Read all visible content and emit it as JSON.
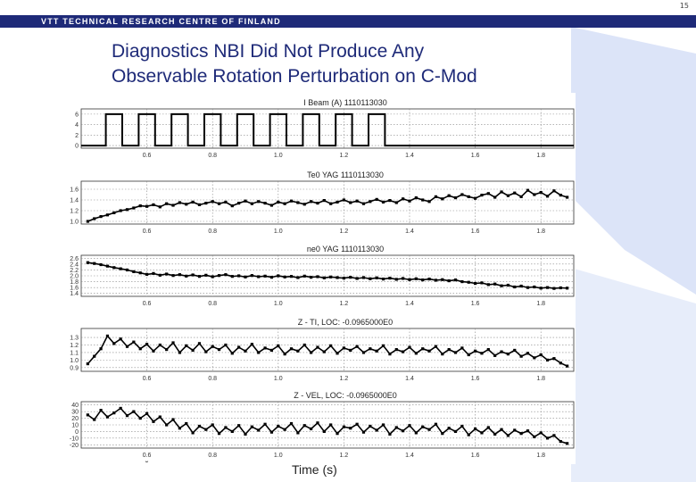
{
  "page_number": "15",
  "header": {
    "org": "VTT TECHNICAL RESEARCH CENTRE OF FINLAND"
  },
  "title": {
    "line1": "Diagnostics NBI Did Not Produce Any",
    "line2": "Observable Rotation Perturbation on C-Mod"
  },
  "x_axis_title": "Time (s)",
  "colors": {
    "header_bar": "#1e2a78",
    "title": "#1e2a78",
    "background_shape": "#3b6bd6",
    "trace": "#000000"
  },
  "chart_data": [
    {
      "type": "line",
      "title": "I Beam (A) 1110113030",
      "x_ticks": [
        0.6,
        0.8,
        1.0,
        1.2,
        1.4,
        1.6,
        1.8
      ],
      "x_tick_labels": [
        "0.6",
        "0.8",
        "1.0",
        "1.2",
        "1.4",
        "1.6",
        "1.8"
      ],
      "y_ticks": [
        0,
        2,
        4,
        6
      ],
      "y_tick_labels": [
        "0",
        "2",
        "4",
        "6"
      ],
      "xlim": [
        0.4,
        1.9
      ],
      "ylim": [
        -0.5,
        7
      ],
      "grid": true,
      "waveform": {
        "kind": "pulses",
        "low": 0,
        "high": 6,
        "period": 0.1,
        "on_duration": 0.05,
        "first_on": 0.475,
        "count": 9
      }
    },
    {
      "type": "line",
      "title": "Te0 YAG 1110113030",
      "x_ticks": [
        0.6,
        0.8,
        1.0,
        1.2,
        1.4,
        1.6,
        1.8
      ],
      "x_tick_labels": [
        "0.6",
        "0.8",
        "1.0",
        "1.2",
        "1.4",
        "1.6",
        "1.8"
      ],
      "y_ticks": [
        1.0,
        1.2,
        1.4,
        1.6
      ],
      "y_tick_labels": [
        "1.0",
        "1.2",
        "1.4",
        "1.6"
      ],
      "xlim": [
        0.4,
        1.9
      ],
      "ylim": [
        0.95,
        1.75
      ],
      "grid": true,
      "x": [
        0.42,
        0.44,
        0.46,
        0.48,
        0.5,
        0.52,
        0.54,
        0.56,
        0.58,
        0.6,
        0.62,
        0.64,
        0.66,
        0.68,
        0.7,
        0.72,
        0.74,
        0.76,
        0.78,
        0.8,
        0.82,
        0.84,
        0.86,
        0.88,
        0.9,
        0.92,
        0.94,
        0.96,
        0.98,
        1.0,
        1.02,
        1.04,
        1.06,
        1.08,
        1.1,
        1.12,
        1.14,
        1.16,
        1.18,
        1.2,
        1.22,
        1.24,
        1.26,
        1.28,
        1.3,
        1.32,
        1.34,
        1.36,
        1.38,
        1.4,
        1.42,
        1.44,
        1.46,
        1.48,
        1.5,
        1.52,
        1.54,
        1.56,
        1.58,
        1.6,
        1.62,
        1.64,
        1.66,
        1.68,
        1.7,
        1.72,
        1.74,
        1.76,
        1.78,
        1.8,
        1.82,
        1.84,
        1.86,
        1.88
      ],
      "y": [
        1.0,
        1.05,
        1.09,
        1.12,
        1.16,
        1.2,
        1.22,
        1.25,
        1.29,
        1.28,
        1.31,
        1.27,
        1.33,
        1.3,
        1.35,
        1.32,
        1.36,
        1.31,
        1.34,
        1.37,
        1.33,
        1.36,
        1.29,
        1.34,
        1.38,
        1.33,
        1.37,
        1.34,
        1.3,
        1.36,
        1.33,
        1.38,
        1.35,
        1.32,
        1.37,
        1.34,
        1.39,
        1.33,
        1.36,
        1.4,
        1.35,
        1.38,
        1.33,
        1.37,
        1.41,
        1.36,
        1.39,
        1.35,
        1.42,
        1.38,
        1.44,
        1.4,
        1.37,
        1.46,
        1.42,
        1.48,
        1.44,
        1.5,
        1.46,
        1.43,
        1.49,
        1.52,
        1.45,
        1.55,
        1.48,
        1.53,
        1.46,
        1.58,
        1.5,
        1.54,
        1.47,
        1.57,
        1.49,
        1.45
      ]
    },
    {
      "type": "line",
      "title": "ne0 YAG 1110113030",
      "x_ticks": [
        0.6,
        0.8,
        1.0,
        1.2,
        1.4,
        1.6,
        1.8
      ],
      "x_tick_labels": [
        "0.6",
        "0.8",
        "1.0",
        "1.2",
        "1.4",
        "1.6",
        "1.8"
      ],
      "y_ticks": [
        1.4,
        1.6,
        1.8,
        2.0,
        2.2,
        2.4,
        2.6
      ],
      "y_tick_labels": [
        "1.4",
        "1.6",
        "1.8",
        "2.0",
        "2.2",
        "2.4",
        "2.6"
      ],
      "xlim": [
        0.4,
        1.9
      ],
      "ylim": [
        1.3,
        2.7
      ],
      "grid": true,
      "x": [
        0.42,
        0.44,
        0.46,
        0.48,
        0.5,
        0.52,
        0.54,
        0.56,
        0.58,
        0.6,
        0.62,
        0.64,
        0.66,
        0.68,
        0.7,
        0.72,
        0.74,
        0.76,
        0.78,
        0.8,
        0.82,
        0.84,
        0.86,
        0.88,
        0.9,
        0.92,
        0.94,
        0.96,
        0.98,
        1.0,
        1.02,
        1.04,
        1.06,
        1.08,
        1.1,
        1.12,
        1.14,
        1.16,
        1.18,
        1.2,
        1.22,
        1.24,
        1.26,
        1.28,
        1.3,
        1.32,
        1.34,
        1.36,
        1.38,
        1.4,
        1.42,
        1.44,
        1.46,
        1.48,
        1.5,
        1.52,
        1.54,
        1.56,
        1.58,
        1.6,
        1.62,
        1.64,
        1.66,
        1.68,
        1.7,
        1.72,
        1.74,
        1.76,
        1.78,
        1.8,
        1.82,
        1.84,
        1.86,
        1.88
      ],
      "y": [
        2.45,
        2.42,
        2.38,
        2.33,
        2.28,
        2.24,
        2.2,
        2.14,
        2.1,
        2.05,
        2.08,
        2.02,
        2.06,
        2.01,
        2.04,
        1.99,
        2.03,
        1.98,
        2.02,
        1.97,
        2.01,
        2.04,
        1.98,
        2.0,
        1.96,
        2.01,
        1.97,
        1.99,
        1.95,
        2.0,
        1.96,
        1.98,
        1.94,
        1.99,
        1.95,
        1.97,
        1.93,
        1.96,
        1.94,
        1.92,
        1.95,
        1.91,
        1.94,
        1.9,
        1.93,
        1.89,
        1.92,
        1.88,
        1.91,
        1.87,
        1.9,
        1.86,
        1.89,
        1.85,
        1.87,
        1.83,
        1.86,
        1.8,
        1.78,
        1.74,
        1.76,
        1.7,
        1.72,
        1.66,
        1.68,
        1.62,
        1.65,
        1.6,
        1.62,
        1.58,
        1.6,
        1.57,
        1.59,
        1.58
      ]
    },
    {
      "type": "line",
      "title": "Z - TI, LOC:  -0.0965000E0",
      "x_ticks": [
        0.6,
        0.8,
        1.0,
        1.2,
        1.4,
        1.6,
        1.8
      ],
      "x_tick_labels": [
        "0.6",
        "0.8",
        "1.0",
        "1.2",
        "1.4",
        "1.6",
        "1.8"
      ],
      "y_ticks": [
        0.9,
        1.0,
        1.1,
        1.2,
        1.3
      ],
      "y_tick_labels": [
        "0.9",
        "1.0",
        "1.1",
        "1.2",
        "1.3"
      ],
      "xlim": [
        0.4,
        1.9
      ],
      "ylim": [
        0.85,
        1.42
      ],
      "grid": true,
      "x": [
        0.42,
        0.44,
        0.46,
        0.48,
        0.5,
        0.52,
        0.54,
        0.56,
        0.58,
        0.6,
        0.62,
        0.64,
        0.66,
        0.68,
        0.7,
        0.72,
        0.74,
        0.76,
        0.78,
        0.8,
        0.82,
        0.84,
        0.86,
        0.88,
        0.9,
        0.92,
        0.94,
        0.96,
        0.98,
        1.0,
        1.02,
        1.04,
        1.06,
        1.08,
        1.1,
        1.12,
        1.14,
        1.16,
        1.18,
        1.2,
        1.22,
        1.24,
        1.26,
        1.28,
        1.3,
        1.32,
        1.34,
        1.36,
        1.38,
        1.4,
        1.42,
        1.44,
        1.46,
        1.48,
        1.5,
        1.52,
        1.54,
        1.56,
        1.58,
        1.6,
        1.62,
        1.64,
        1.66,
        1.68,
        1.7,
        1.72,
        1.74,
        1.76,
        1.78,
        1.8,
        1.82,
        1.84,
        1.86,
        1.88
      ],
      "y": [
        0.95,
        1.05,
        1.15,
        1.32,
        1.22,
        1.28,
        1.18,
        1.24,
        1.15,
        1.21,
        1.12,
        1.2,
        1.14,
        1.23,
        1.1,
        1.19,
        1.13,
        1.22,
        1.11,
        1.18,
        1.14,
        1.2,
        1.09,
        1.17,
        1.12,
        1.21,
        1.1,
        1.16,
        1.13,
        1.19,
        1.08,
        1.15,
        1.12,
        1.2,
        1.1,
        1.17,
        1.11,
        1.19,
        1.09,
        1.16,
        1.13,
        1.18,
        1.1,
        1.15,
        1.12,
        1.19,
        1.08,
        1.14,
        1.11,
        1.17,
        1.09,
        1.15,
        1.12,
        1.18,
        1.08,
        1.14,
        1.1,
        1.16,
        1.07,
        1.12,
        1.09,
        1.14,
        1.06,
        1.11,
        1.08,
        1.13,
        1.05,
        1.09,
        1.03,
        1.07,
        1.0,
        1.02,
        0.96,
        0.92
      ]
    },
    {
      "type": "line",
      "title": "Z - VEL, LOC: -0.0965000E0",
      "x_ticks": [
        0.6,
        0.8,
        1.0,
        1.2,
        1.4,
        1.6,
        1.8
      ],
      "x_tick_labels": [
        "0.6",
        "0.8",
        "1.0",
        "1.2",
        "1.4",
        "1.6",
        "1.8"
      ],
      "y_ticks": [
        -20,
        -10,
        0,
        10,
        20,
        30,
        40
      ],
      "y_tick_labels": [
        "-20",
        "-10",
        "0",
        "10",
        "20",
        "30",
        "40"
      ],
      "xlim": [
        0.4,
        1.9
      ],
      "ylim": [
        -25,
        45
      ],
      "grid": true,
      "x": [
        0.42,
        0.44,
        0.46,
        0.48,
        0.5,
        0.52,
        0.54,
        0.56,
        0.58,
        0.6,
        0.62,
        0.64,
        0.66,
        0.68,
        0.7,
        0.72,
        0.74,
        0.76,
        0.78,
        0.8,
        0.82,
        0.84,
        0.86,
        0.88,
        0.9,
        0.92,
        0.94,
        0.96,
        0.98,
        1.0,
        1.02,
        1.04,
        1.06,
        1.08,
        1.1,
        1.12,
        1.14,
        1.16,
        1.18,
        1.2,
        1.22,
        1.24,
        1.26,
        1.28,
        1.3,
        1.32,
        1.34,
        1.36,
        1.38,
        1.4,
        1.42,
        1.44,
        1.46,
        1.48,
        1.5,
        1.52,
        1.54,
        1.56,
        1.58,
        1.6,
        1.62,
        1.64,
        1.66,
        1.68,
        1.7,
        1.72,
        1.74,
        1.76,
        1.78,
        1.8,
        1.82,
        1.84,
        1.86,
        1.88
      ],
      "y": [
        25,
        18,
        32,
        22,
        28,
        35,
        24,
        30,
        20,
        27,
        15,
        22,
        10,
        18,
        5,
        12,
        -2,
        8,
        3,
        10,
        -3,
        6,
        0,
        9,
        -4,
        7,
        2,
        11,
        -1,
        8,
        3,
        12,
        -2,
        9,
        4,
        13,
        0,
        10,
        -3,
        7,
        5,
        11,
        -1,
        8,
        2,
        10,
        -4,
        6,
        1,
        9,
        -2,
        7,
        3,
        11,
        -3,
        5,
        0,
        8,
        -5,
        4,
        -2,
        6,
        -4,
        3,
        -6,
        2,
        -3,
        1,
        -8,
        -2,
        -10,
        -6,
        -15,
        -18
      ]
    }
  ]
}
